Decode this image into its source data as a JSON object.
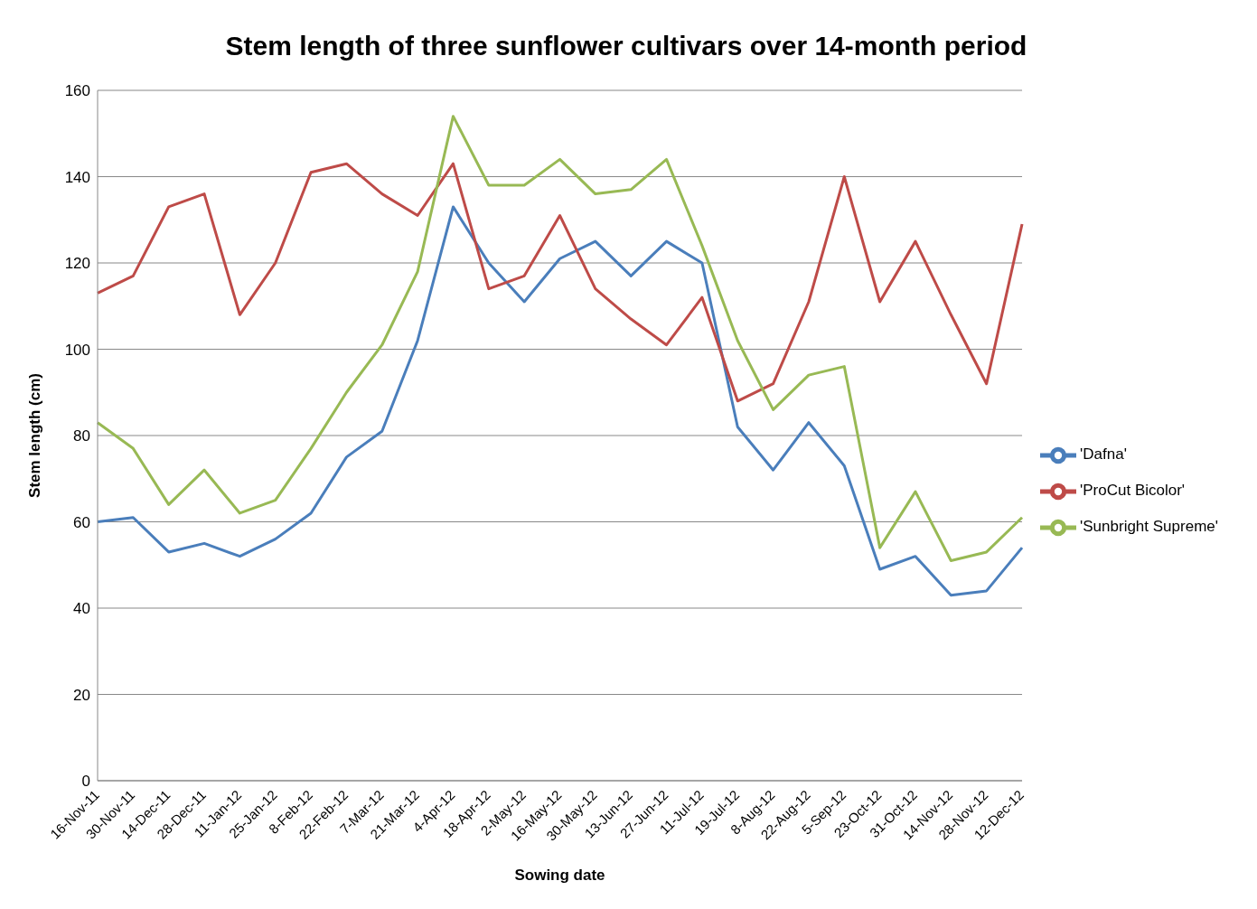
{
  "chart_data": {
    "type": "line",
    "title": "Stem length of three sunflower cultivars over 14-month period",
    "xlabel": "Sowing date",
    "ylabel": "Stem length (cm)",
    "categories": [
      "16-Nov-11",
      "30-Nov-11",
      "14-Dec-11",
      "28-Dec-11",
      "11-Jan-12",
      "25-Jan-12",
      "8-Feb-12",
      "22-Feb-12",
      "7-Mar-12",
      "21-Mar-12",
      "4-Apr-12",
      "18-Apr-12",
      "2-May-12",
      "16-May-12",
      "30-May-12",
      "13-Jun-12",
      "27-Jun-12",
      "11-Jul-12",
      "19-Jul-12",
      "8-Aug-12",
      "22-Aug-12",
      "5-Sep-12",
      "23-Oct-12",
      "31-Oct-12",
      "14-Nov-12",
      "28-Nov-12",
      "12-Dec-12"
    ],
    "series": [
      {
        "name": "'Dafna'",
        "color": "#4a7ebb",
        "values": [
          60,
          61,
          53,
          55,
          52,
          56,
          62,
          75,
          81,
          102,
          133,
          120,
          111,
          121,
          125,
          117,
          125,
          120,
          82,
          72,
          83,
          73,
          49,
          52,
          43,
          44,
          54
        ]
      },
      {
        "name": "'ProCut Bicolor'",
        "color": "#be4b48",
        "values": [
          113,
          117,
          133,
          136,
          108,
          120,
          141,
          143,
          136,
          131,
          143,
          114,
          117,
          131,
          114,
          107,
          101,
          112,
          88,
          92,
          111,
          140,
          111,
          125,
          108,
          92,
          129
        ]
      },
      {
        "name": "'Sunbright Supreme'",
        "color": "#98b954",
        "values": [
          83,
          77,
          64,
          72,
          62,
          65,
          77,
          90,
          101,
          118,
          154,
          138,
          138,
          144,
          136,
          137,
          144,
          124,
          102,
          86,
          94,
          96,
          54,
          67,
          51,
          53,
          61
        ]
      }
    ],
    "ylim": [
      0,
      160
    ],
    "yticks": [
      0,
      20,
      40,
      60,
      80,
      100,
      120,
      140,
      160
    ],
    "grid": "y",
    "legend": "right",
    "marker": "none",
    "line_style": "solid"
  }
}
